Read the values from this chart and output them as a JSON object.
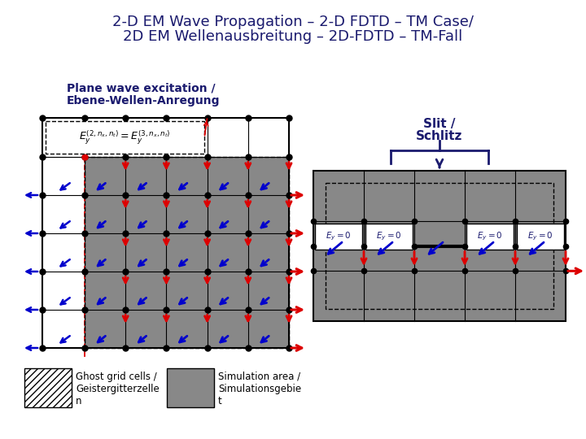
{
  "title_line1": "2-D EM Wave Propagation – 2-D FDTD – TM Case/",
  "title_line2": "2D EM Wellenausbreitung – 2D-FDTD – TM-Fall",
  "title_color": "#1a1a6e",
  "left_label_line1": "Plane wave excitation /",
  "left_label_line2": "Ebene-Wellen-Anregung",
  "right_label_line1": "Slit /",
  "right_label_line2": "Schlitz",
  "bg_color": "#ffffff",
  "gray_color": "#888888",
  "dark_navy": "#1a1a6e",
  "red": "#dd0000",
  "blue": "#0000cc"
}
